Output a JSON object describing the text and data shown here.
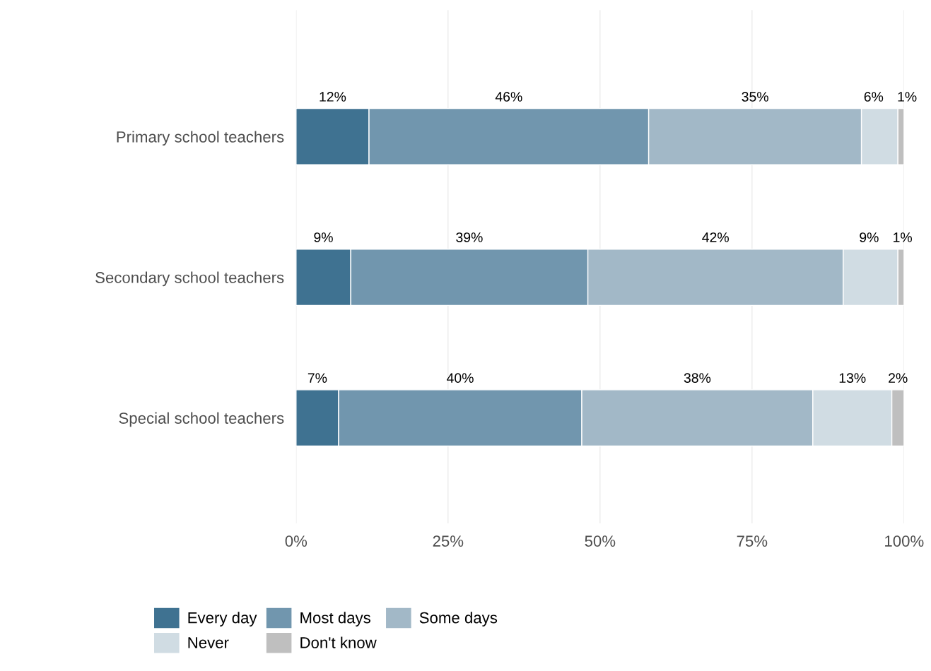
{
  "chart_data": {
    "type": "bar",
    "orientation": "horizontal",
    "stacked": true,
    "categories": [
      "Primary school teachers",
      "Secondary school teachers",
      "Special school teachers"
    ],
    "series": [
      {
        "name": "Every day",
        "color": "#3f7291",
        "values": [
          12,
          9,
          7
        ],
        "value_labels": [
          "12%",
          "9%",
          "7%"
        ]
      },
      {
        "name": "Most days",
        "color": "#7196ae",
        "values": [
          46,
          39,
          40
        ],
        "value_labels": [
          "46%",
          "39%",
          "40%"
        ]
      },
      {
        "name": "Some days",
        "color": "#a2b8c7",
        "values": [
          35,
          42,
          38
        ],
        "value_labels": [
          "35%",
          "42%",
          "38%"
        ]
      },
      {
        "name": "Never",
        "color": "#d0dce3",
        "values": [
          6,
          9,
          13
        ],
        "value_labels": [
          "6%",
          "9%",
          "13%"
        ]
      },
      {
        "name": "Don't know",
        "color": "#bfbfbf",
        "values": [
          1,
          1,
          2
        ],
        "value_labels": [
          "1%",
          "1%",
          "2%"
        ]
      }
    ],
    "xlim": [
      0,
      100
    ],
    "xticks": [
      {
        "value": 0,
        "label": "0%"
      },
      {
        "value": 25,
        "label": "25%"
      },
      {
        "value": 50,
        "label": "50%"
      },
      {
        "value": 75,
        "label": "75%"
      },
      {
        "value": 100,
        "label": "100%"
      }
    ],
    "grid": "x",
    "legend": "bottom"
  }
}
